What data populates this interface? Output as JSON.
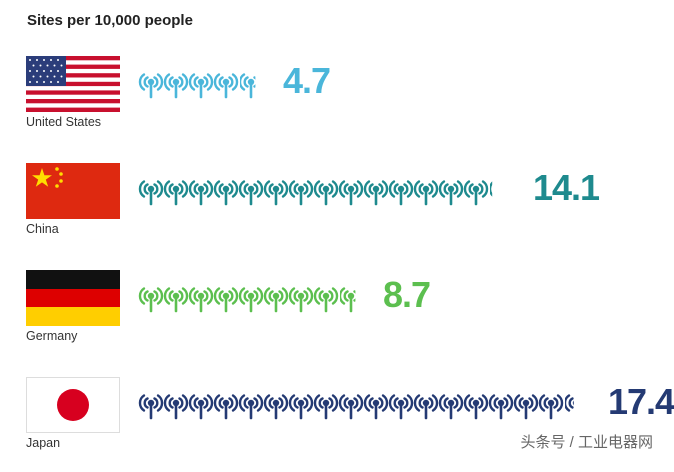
{
  "title": "Sites per 10,000 people",
  "watermark": "头条号 / 工业电器网",
  "chart_data": {
    "type": "bar",
    "title": "Sites per 10,000 people",
    "categories": [
      "United States",
      "China",
      "Germany",
      "Japan"
    ],
    "values": [
      4.7,
      14.1,
      8.7,
      17.4
    ],
    "colors": [
      "#4ab6da",
      "#1e8a8e",
      "#5cbf4f",
      "#243a73"
    ],
    "icon": "antenna-tower-icon",
    "units_per_icon": 1
  },
  "rows": [
    {
      "country": "United States",
      "value": "4.7",
      "color": "#4ab6da",
      "flag": "us-flag-icon"
    },
    {
      "country": "China",
      "value": "14.1",
      "color": "#1e8a8e",
      "flag": "china-flag-icon"
    },
    {
      "country": "Germany",
      "value": "8.7",
      "color": "#5cbf4f",
      "flag": "germany-flag-icon"
    },
    {
      "country": "Japan",
      "value": "17.4",
      "color": "#243a73",
      "flag": "japan-flag-icon"
    }
  ]
}
